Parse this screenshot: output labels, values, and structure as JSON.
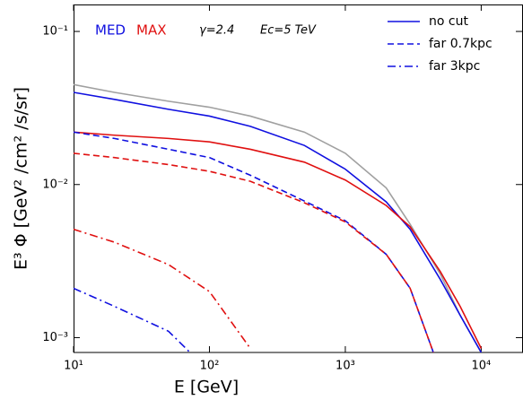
{
  "chart_data": {
    "type": "line",
    "x": [
      10,
      20,
      50,
      100,
      200,
      500,
      1000,
      2000,
      3000,
      5000,
      7000,
      10000
    ],
    "series": [
      {
        "color": "#a0a0a0",
        "linestyle": "solid",
        "values": [
          0.045,
          0.04,
          0.035,
          0.032,
          0.028,
          0.022,
          0.016,
          0.0095,
          0.0055,
          0.0026,
          0.0014,
          0.0008
        ]
      },
      {
        "name": "no cut",
        "color": "#1010e0",
        "linestyle": "solid",
        "values": [
          0.04,
          0.036,
          0.031,
          0.028,
          0.024,
          0.018,
          0.0126,
          0.0077,
          0.0051,
          0.0024,
          0.0014,
          0.0008
        ]
      },
      {
        "color": "#e01010",
        "linestyle": "solid",
        "values": [
          0.022,
          0.021,
          0.02,
          0.019,
          0.017,
          0.014,
          0.0107,
          0.0073,
          0.0053,
          0.0027,
          0.0016,
          0.00085
        ]
      },
      {
        "name": "far 0.7kpc",
        "color": "#1010e0",
        "linestyle": "dashed",
        "values": [
          0.022,
          0.02,
          0.017,
          0.015,
          0.0115,
          0.0078,
          0.0058,
          0.0035,
          0.0021,
          0.0006,
          null,
          null
        ]
      },
      {
        "color": "#e01010",
        "linestyle": "dashed",
        "values": [
          0.016,
          0.015,
          0.0135,
          0.0122,
          0.0105,
          0.0076,
          0.0057,
          0.0035,
          0.0021,
          0.0006,
          null,
          null
        ]
      },
      {
        "name": "far 3kpc",
        "color": "#1010e0",
        "linestyle": "dashdot",
        "values": [
          0.0021,
          0.0016,
          0.0011,
          0.0006,
          null,
          null,
          null,
          null,
          null,
          null,
          null,
          null
        ]
      },
      {
        "color": "#e01010",
        "linestyle": "dashdot",
        "values": [
          0.0051,
          0.0042,
          0.003,
          0.002,
          0.00085,
          null,
          null,
          null,
          null,
          null,
          null,
          null
        ]
      }
    ],
    "xlabel": "E [GeV]",
    "ylabel": "E³ Φ [GeV² /cm² /s/sr]",
    "annotations": [
      {
        "text": "MED",
        "color": "#1010e0"
      },
      {
        "text": "MAX",
        "color": "#e01010"
      },
      {
        "text": "γ=2.4",
        "color": "#000000"
      },
      {
        "text": "Ec=5 TeV",
        "color": "#000000"
      }
    ],
    "xscale": "log",
    "yscale": "log",
    "xlim": [
      10,
      20000
    ],
    "ylim": [
      0.0008,
      0.15
    ],
    "xticks": [
      {
        "value": 10,
        "label": "10¹"
      },
      {
        "value": 100,
        "label": "10²"
      },
      {
        "value": 1000,
        "label": "10³"
      },
      {
        "value": 10000,
        "label": "10⁴"
      }
    ],
    "yticks": [
      {
        "value": 0.001,
        "label": "10⁻³"
      },
      {
        "value": 0.01,
        "label": "10⁻²"
      },
      {
        "value": 0.1,
        "label": "10⁻¹"
      }
    ],
    "legend": "upper right"
  }
}
